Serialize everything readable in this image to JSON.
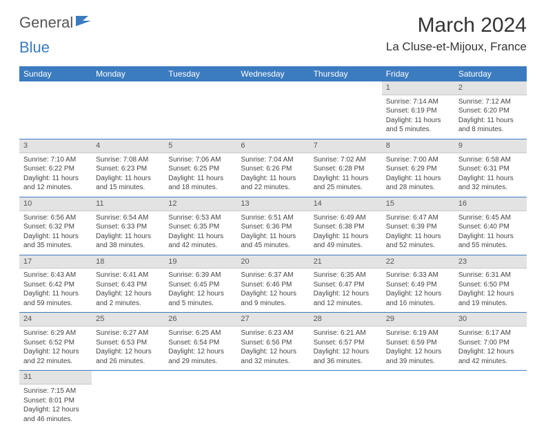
{
  "logo": {
    "part1": "General",
    "part2": "Blue"
  },
  "title": "March 2024",
  "location": "La Cluse-et-Mijoux, France",
  "colors": {
    "header_bg": "#3b7bbf",
    "header_text": "#ffffff",
    "daynum_bg": "#e3e3e3",
    "row_border": "#3b7bbf",
    "text": "#444444",
    "page_bg": "#ffffff"
  },
  "weekdays": [
    "Sunday",
    "Monday",
    "Tuesday",
    "Wednesday",
    "Thursday",
    "Friday",
    "Saturday"
  ],
  "weeks": [
    [
      null,
      null,
      null,
      null,
      null,
      {
        "n": "1",
        "sunrise": "Sunrise: 7:14 AM",
        "sunset": "Sunset: 6:19 PM",
        "daylight": "Daylight: 11 hours and 5 minutes."
      },
      {
        "n": "2",
        "sunrise": "Sunrise: 7:12 AM",
        "sunset": "Sunset: 6:20 PM",
        "daylight": "Daylight: 11 hours and 8 minutes."
      }
    ],
    [
      {
        "n": "3",
        "sunrise": "Sunrise: 7:10 AM",
        "sunset": "Sunset: 6:22 PM",
        "daylight": "Daylight: 11 hours and 12 minutes."
      },
      {
        "n": "4",
        "sunrise": "Sunrise: 7:08 AM",
        "sunset": "Sunset: 6:23 PM",
        "daylight": "Daylight: 11 hours and 15 minutes."
      },
      {
        "n": "5",
        "sunrise": "Sunrise: 7:06 AM",
        "sunset": "Sunset: 6:25 PM",
        "daylight": "Daylight: 11 hours and 18 minutes."
      },
      {
        "n": "6",
        "sunrise": "Sunrise: 7:04 AM",
        "sunset": "Sunset: 6:26 PM",
        "daylight": "Daylight: 11 hours and 22 minutes."
      },
      {
        "n": "7",
        "sunrise": "Sunrise: 7:02 AM",
        "sunset": "Sunset: 6:28 PM",
        "daylight": "Daylight: 11 hours and 25 minutes."
      },
      {
        "n": "8",
        "sunrise": "Sunrise: 7:00 AM",
        "sunset": "Sunset: 6:29 PM",
        "daylight": "Daylight: 11 hours and 28 minutes."
      },
      {
        "n": "9",
        "sunrise": "Sunrise: 6:58 AM",
        "sunset": "Sunset: 6:31 PM",
        "daylight": "Daylight: 11 hours and 32 minutes."
      }
    ],
    [
      {
        "n": "10",
        "sunrise": "Sunrise: 6:56 AM",
        "sunset": "Sunset: 6:32 PM",
        "daylight": "Daylight: 11 hours and 35 minutes."
      },
      {
        "n": "11",
        "sunrise": "Sunrise: 6:54 AM",
        "sunset": "Sunset: 6:33 PM",
        "daylight": "Daylight: 11 hours and 38 minutes."
      },
      {
        "n": "12",
        "sunrise": "Sunrise: 6:53 AM",
        "sunset": "Sunset: 6:35 PM",
        "daylight": "Daylight: 11 hours and 42 minutes."
      },
      {
        "n": "13",
        "sunrise": "Sunrise: 6:51 AM",
        "sunset": "Sunset: 6:36 PM",
        "daylight": "Daylight: 11 hours and 45 minutes."
      },
      {
        "n": "14",
        "sunrise": "Sunrise: 6:49 AM",
        "sunset": "Sunset: 6:38 PM",
        "daylight": "Daylight: 11 hours and 49 minutes."
      },
      {
        "n": "15",
        "sunrise": "Sunrise: 6:47 AM",
        "sunset": "Sunset: 6:39 PM",
        "daylight": "Daylight: 11 hours and 52 minutes."
      },
      {
        "n": "16",
        "sunrise": "Sunrise: 6:45 AM",
        "sunset": "Sunset: 6:40 PM",
        "daylight": "Daylight: 11 hours and 55 minutes."
      }
    ],
    [
      {
        "n": "17",
        "sunrise": "Sunrise: 6:43 AM",
        "sunset": "Sunset: 6:42 PM",
        "daylight": "Daylight: 11 hours and 59 minutes."
      },
      {
        "n": "18",
        "sunrise": "Sunrise: 6:41 AM",
        "sunset": "Sunset: 6:43 PM",
        "daylight": "Daylight: 12 hours and 2 minutes."
      },
      {
        "n": "19",
        "sunrise": "Sunrise: 6:39 AM",
        "sunset": "Sunset: 6:45 PM",
        "daylight": "Daylight: 12 hours and 5 minutes."
      },
      {
        "n": "20",
        "sunrise": "Sunrise: 6:37 AM",
        "sunset": "Sunset: 6:46 PM",
        "daylight": "Daylight: 12 hours and 9 minutes."
      },
      {
        "n": "21",
        "sunrise": "Sunrise: 6:35 AM",
        "sunset": "Sunset: 6:47 PM",
        "daylight": "Daylight: 12 hours and 12 minutes."
      },
      {
        "n": "22",
        "sunrise": "Sunrise: 6:33 AM",
        "sunset": "Sunset: 6:49 PM",
        "daylight": "Daylight: 12 hours and 16 minutes."
      },
      {
        "n": "23",
        "sunrise": "Sunrise: 6:31 AM",
        "sunset": "Sunset: 6:50 PM",
        "daylight": "Daylight: 12 hours and 19 minutes."
      }
    ],
    [
      {
        "n": "24",
        "sunrise": "Sunrise: 6:29 AM",
        "sunset": "Sunset: 6:52 PM",
        "daylight": "Daylight: 12 hours and 22 minutes."
      },
      {
        "n": "25",
        "sunrise": "Sunrise: 6:27 AM",
        "sunset": "Sunset: 6:53 PM",
        "daylight": "Daylight: 12 hours and 26 minutes."
      },
      {
        "n": "26",
        "sunrise": "Sunrise: 6:25 AM",
        "sunset": "Sunset: 6:54 PM",
        "daylight": "Daylight: 12 hours and 29 minutes."
      },
      {
        "n": "27",
        "sunrise": "Sunrise: 6:23 AM",
        "sunset": "Sunset: 6:56 PM",
        "daylight": "Daylight: 12 hours and 32 minutes."
      },
      {
        "n": "28",
        "sunrise": "Sunrise: 6:21 AM",
        "sunset": "Sunset: 6:57 PM",
        "daylight": "Daylight: 12 hours and 36 minutes."
      },
      {
        "n": "29",
        "sunrise": "Sunrise: 6:19 AM",
        "sunset": "Sunset: 6:59 PM",
        "daylight": "Daylight: 12 hours and 39 minutes."
      },
      {
        "n": "30",
        "sunrise": "Sunrise: 6:17 AM",
        "sunset": "Sunset: 7:00 PM",
        "daylight": "Daylight: 12 hours and 42 minutes."
      }
    ],
    [
      {
        "n": "31",
        "sunrise": "Sunrise: 7:15 AM",
        "sunset": "Sunset: 8:01 PM",
        "daylight": "Daylight: 12 hours and 46 minutes."
      },
      null,
      null,
      null,
      null,
      null,
      null
    ]
  ]
}
